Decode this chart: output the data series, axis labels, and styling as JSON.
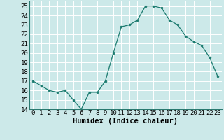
{
  "x": [
    0,
    1,
    2,
    3,
    4,
    5,
    6,
    7,
    8,
    9,
    10,
    11,
    12,
    13,
    14,
    15,
    16,
    17,
    18,
    19,
    20,
    21,
    22,
    23
  ],
  "y": [
    17,
    16.5,
    16,
    15.8,
    16,
    15,
    14,
    15.8,
    15.8,
    17,
    20,
    22.8,
    23,
    23.5,
    25,
    25,
    24.8,
    23.5,
    23,
    21.8,
    21.2,
    20.8,
    19.5,
    17.5
  ],
  "line_color": "#1a7a6e",
  "marker_color": "#1a7a6e",
  "bg_color": "#cce9e9",
  "grid_color": "#b0d8d8",
  "xlabel": "Humidex (Indice chaleur)",
  "xlim": [
    -0.5,
    23.5
  ],
  "ylim": [
    14,
    25.5
  ],
  "yticks": [
    14,
    15,
    16,
    17,
    18,
    19,
    20,
    21,
    22,
    23,
    24,
    25
  ],
  "xticks": [
    0,
    1,
    2,
    3,
    4,
    5,
    6,
    7,
    8,
    9,
    10,
    11,
    12,
    13,
    14,
    15,
    16,
    17,
    18,
    19,
    20,
    21,
    22,
    23
  ],
  "tick_fontsize": 6.5,
  "label_fontsize": 7.5
}
